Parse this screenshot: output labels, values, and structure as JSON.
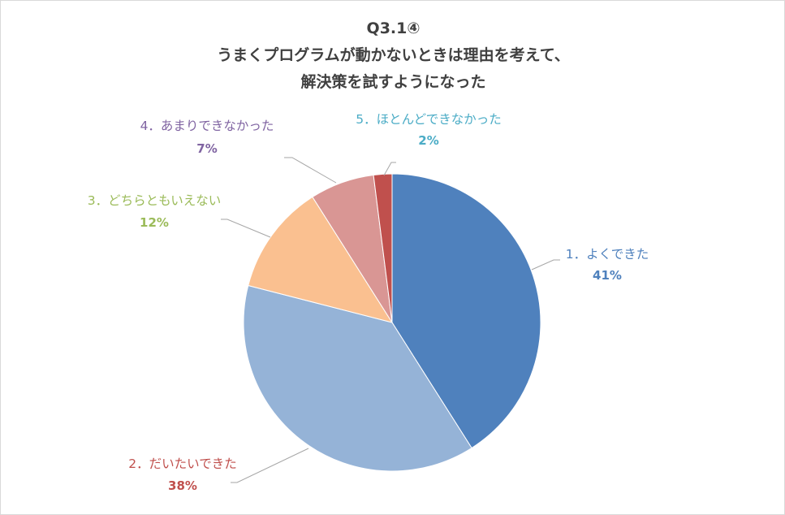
{
  "chart_data": {
    "type": "pie",
    "title_lines": [
      "Q3.1④",
      "うまくプログラムが動かないときは理由を考えて、",
      "解決策を試すようになった"
    ],
    "series": [
      {
        "name": "1．よくできた",
        "value": 41,
        "label": "41%",
        "color": "#4f81bd",
        "label_color": "#4f81bd"
      },
      {
        "name": "2．だいたいできた",
        "value": 38,
        "label": "38%",
        "color": "#95b3d7",
        "label_color": "#c0504d"
      },
      {
        "name": "3．どちらともいえない",
        "value": 12,
        "label": "12%",
        "color": "#fac090",
        "label_color": "#9bbb59"
      },
      {
        "name": "4．あまりできなかった",
        "value": 7,
        "label": "7%",
        "color": "#d99694",
        "label_color": "#8064a2"
      },
      {
        "name": "5．ほとんどできなかった",
        "value": 2,
        "label": "2%",
        "color": "#c0504d",
        "label_color": "#4bacc6"
      }
    ],
    "legend": "none",
    "data_labels": "outside-with-leader-lines"
  }
}
